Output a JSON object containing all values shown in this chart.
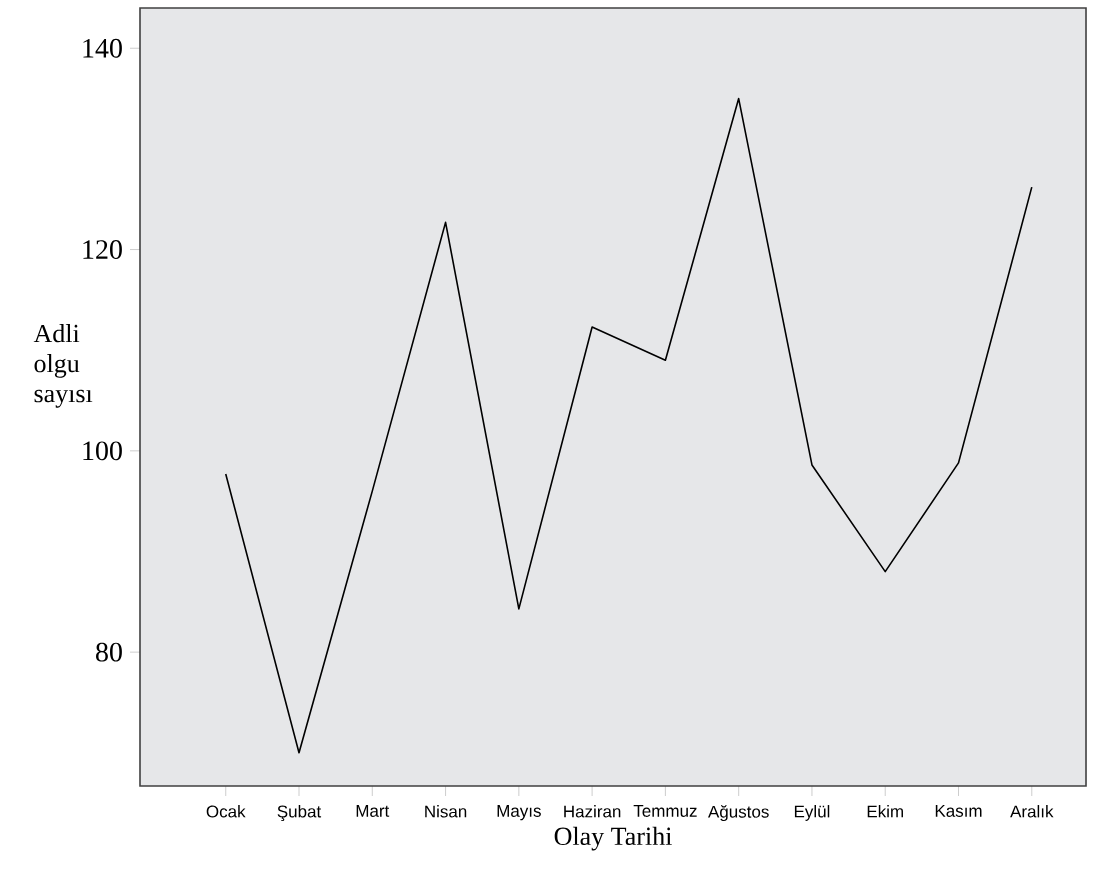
{
  "chart_data": {
    "type": "line",
    "xlabel": "Olay Tarihi",
    "ylabel": "Adli olgu sayısı",
    "categories": [
      "Ocak",
      "Şubat",
      "Mart",
      "Nisan",
      "Mayıs",
      "Haziran",
      "Temmuz",
      "Ağustos",
      "Eylül",
      "Ekim",
      "Kasım",
      "Aralık"
    ],
    "values": [
      97.7,
      70,
      96,
      122.7,
      84.3,
      112.3,
      109,
      135,
      98.6,
      88,
      98.8,
      126.2
    ],
    "color": "#000000",
    "ylim": [
      66.7,
      144
    ],
    "yticks": [
      80,
      100,
      120,
      140
    ]
  }
}
